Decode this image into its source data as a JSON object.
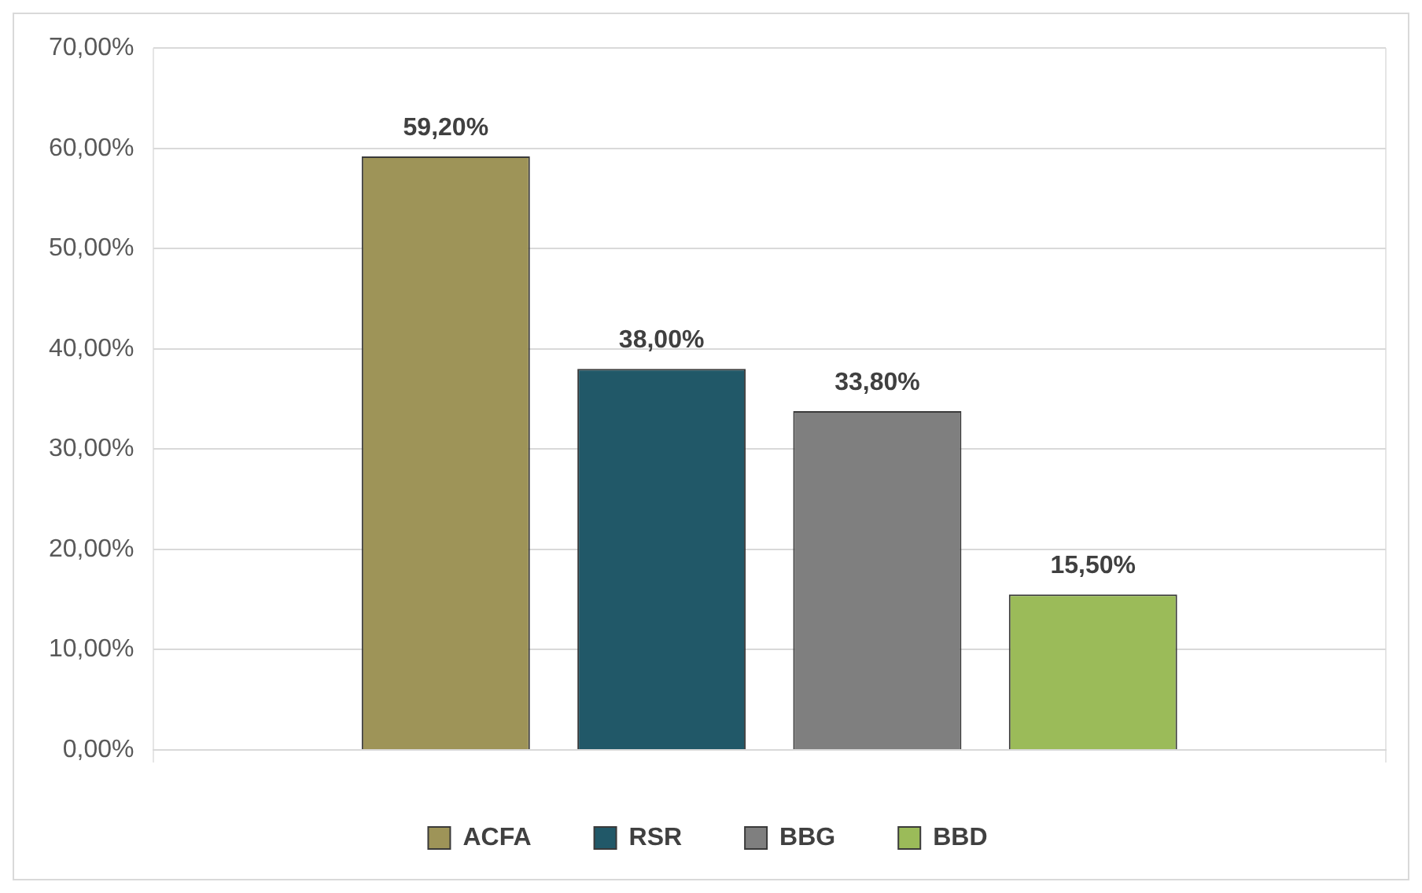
{
  "chart_data": {
    "type": "bar",
    "categories": [
      null
    ],
    "series": [
      {
        "name": "ACFA",
        "color": "#9e9458",
        "values": [
          59.2
        ],
        "value_labels": [
          "59,20%"
        ]
      },
      {
        "name": "RSR",
        "color": "#215868",
        "values": [
          38.0
        ],
        "value_labels": [
          "38,00%"
        ]
      },
      {
        "name": "BBG",
        "color": "#7f7f7f",
        "values": [
          33.8
        ],
        "value_labels": [
          "33,80%"
        ]
      },
      {
        "name": "BBD",
        "color": "#9bbb59",
        "values": [
          15.5
        ],
        "value_labels": [
          "15,50%"
        ]
      }
    ],
    "ylim": [
      0,
      70
    ],
    "yticks": [
      {
        "value": 0,
        "label": "0,00%"
      },
      {
        "value": 10,
        "label": "10,00%"
      },
      {
        "value": 20,
        "label": "20,00%"
      },
      {
        "value": 30,
        "label": "30,00%"
      },
      {
        "value": 40,
        "label": "40,00%"
      },
      {
        "value": 50,
        "label": "50,00%"
      },
      {
        "value": 60,
        "label": "60,00%"
      },
      {
        "value": 70,
        "label": "70,00%"
      }
    ],
    "grid": true,
    "legend": "bottom"
  }
}
